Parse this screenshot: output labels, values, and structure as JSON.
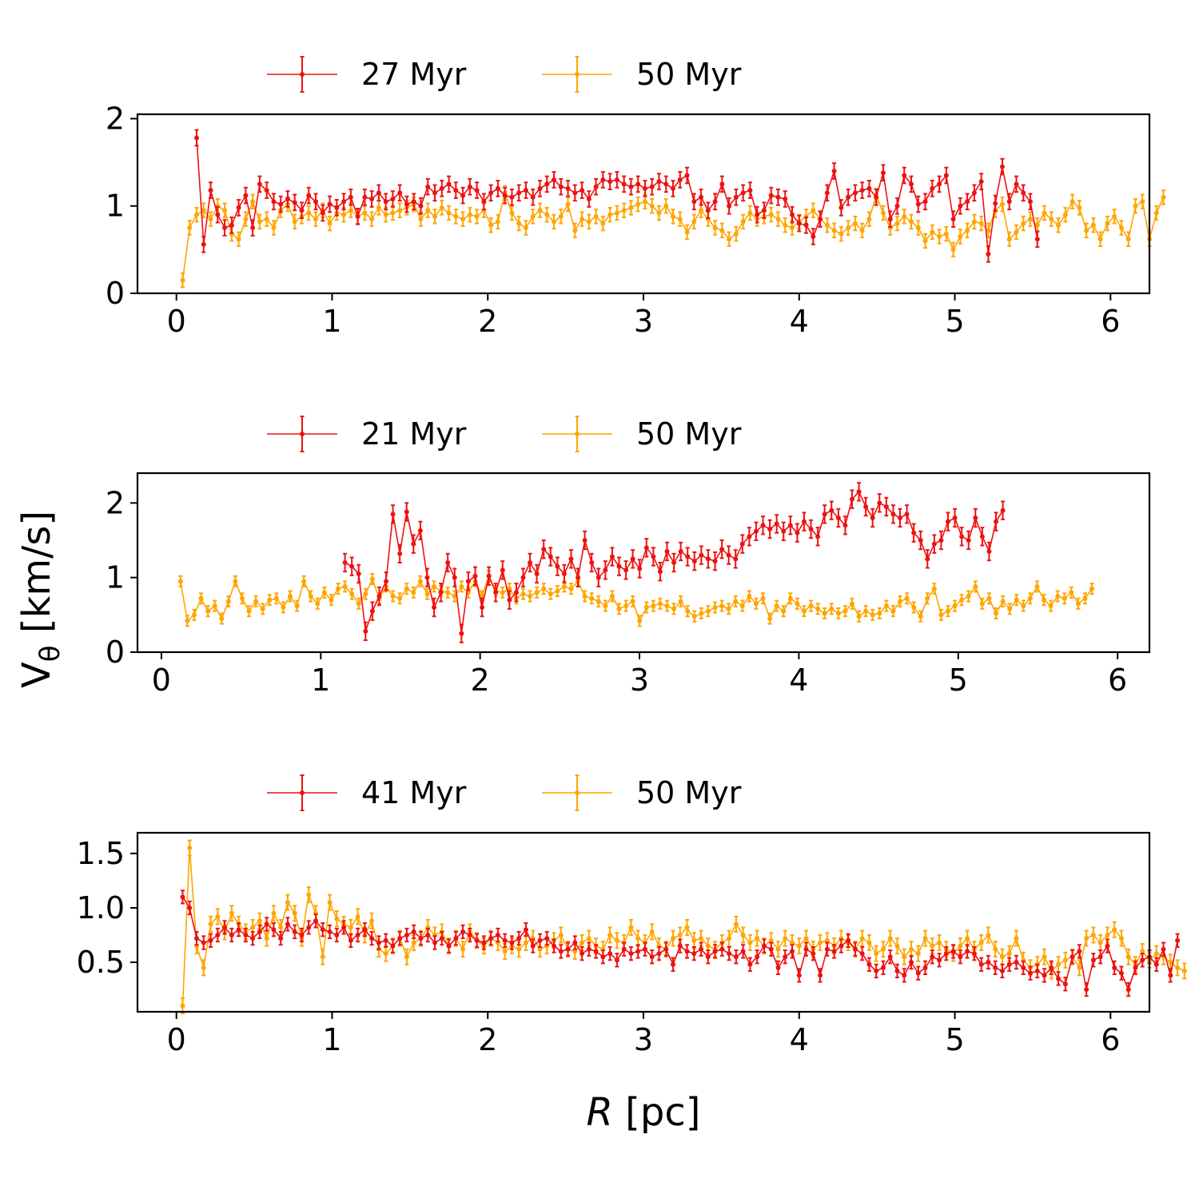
{
  "figure": {
    "ylabel_main": "V",
    "ylabel_sub": "θ",
    "ylabel_unit": " [km/s]",
    "xlabel_main": "R",
    "xlabel_unit": " [pc]"
  },
  "colors": {
    "series_a": "#ee1111",
    "series_b": "#ffa500"
  },
  "chart_data": [
    {
      "type": "line",
      "xlabel": "R [pc]",
      "ylabel": "Vθ [km/s]",
      "xlim": [
        -0.25,
        6.25
      ],
      "ylim": [
        0,
        2.05
      ],
      "xticks": [
        0,
        1,
        2,
        3,
        4,
        5,
        6
      ],
      "yticks": [
        0,
        1,
        2
      ],
      "legend": [
        "27 Myr",
        "50 Myr"
      ],
      "legend_position": "top-center",
      "x_start": 0.04,
      "x_step": 0.045,
      "series": [
        {
          "name": "27 Myr",
          "color": "#ee1111",
          "err": 0.09,
          "start_index": 2,
          "values": [
            1.78,
            0.56,
            1.18,
            0.9,
            0.75,
            0.78,
            0.98,
            1.12,
            0.75,
            1.25,
            1.18,
            1.05,
            1.02,
            1.08,
            1.04,
            0.95,
            1.12,
            1.05,
            0.92,
            1.02,
            0.98,
            1.05,
            1.1,
            0.88,
            1.1,
            1.08,
            1.15,
            1.05,
            1.08,
            1.15,
            1.02,
            1.05,
            1.0,
            1.22,
            1.15,
            1.2,
            1.25,
            1.18,
            1.12,
            1.22,
            1.18,
            1.05,
            1.15,
            1.2,
            1.12,
            1.1,
            1.15,
            1.18,
            1.1,
            1.2,
            1.25,
            1.3,
            1.22,
            1.2,
            1.15,
            1.18,
            1.08,
            1.22,
            1.3,
            1.28,
            1.3,
            1.25,
            1.22,
            1.25,
            1.2,
            1.22,
            1.28,
            1.25,
            1.2,
            1.3,
            1.35,
            1.05,
            1.1,
            0.95,
            1.05,
            1.25,
            1.0,
            1.1,
            1.15,
            1.18,
            0.9,
            0.95,
            1.12,
            1.1,
            1.08,
            0.9,
            0.8,
            0.78,
            0.65,
            0.85,
            1.15,
            1.4,
            0.98,
            1.1,
            1.15,
            1.18,
            1.2,
            1.1,
            1.38,
            0.85,
            1.0,
            1.35,
            1.25,
            1.02,
            1.05,
            1.2,
            1.25,
            1.35,
            0.85,
            1.0,
            1.05,
            1.15,
            1.28,
            0.45,
            1.03,
            1.45,
            1.05,
            1.25,
            1.15,
            1.05,
            0.62
          ]
        },
        {
          "name": "50 Myr",
          "color": "#ffa500",
          "err": 0.08,
          "start_index": 0,
          "values": [
            0.15,
            0.75,
            0.9,
            0.95,
            0.85,
            1.0,
            0.95,
            0.68,
            0.62,
            0.85,
            1.05,
            0.82,
            0.85,
            0.75,
            0.95,
            1.02,
            0.82,
            0.88,
            0.92,
            0.85,
            0.95,
            0.8,
            0.92,
            0.9,
            0.95,
            0.88,
            0.92,
            0.85,
            0.98,
            0.9,
            0.92,
            0.95,
            0.98,
            1.02,
            0.85,
            0.95,
            0.88,
            0.98,
            0.92,
            0.88,
            0.85,
            0.9,
            0.88,
            0.95,
            0.78,
            0.82,
            1.15,
            0.92,
            0.8,
            0.75,
            0.88,
            0.95,
            0.9,
            0.82,
            0.88,
            1.02,
            0.72,
            0.85,
            0.82,
            0.88,
            0.8,
            0.9,
            0.92,
            0.95,
            0.98,
            1.02,
            1.05,
            1.0,
            0.92,
            1.0,
            0.88,
            0.85,
            0.7,
            0.82,
            0.95,
            0.85,
            0.75,
            0.72,
            0.62,
            0.68,
            0.82,
            0.92,
            0.85,
            0.88,
            0.9,
            0.85,
            0.78,
            0.75,
            0.82,
            0.88,
            0.95,
            0.85,
            0.78,
            0.72,
            0.68,
            0.75,
            0.8,
            0.72,
            0.85,
            1.12,
            0.92,
            0.75,
            0.8,
            0.88,
            0.82,
            0.75,
            0.6,
            0.7,
            0.65,
            0.68,
            0.5,
            0.65,
            0.72,
            0.82,
            0.8,
            0.72,
            0.95,
            1.02,
            0.62,
            0.7,
            0.8,
            0.85,
            0.78,
            0.92,
            0.85,
            0.78,
            0.9,
            1.05,
            0.98,
            0.72,
            0.78,
            0.62,
            0.8,
            0.88,
            0.75,
            0.62,
            1.0,
            1.05,
            0.62,
            0.92,
            1.1
          ]
        }
      ]
    },
    {
      "type": "line",
      "xlabel": "R [pc]",
      "ylabel": "Vθ [km/s]",
      "xlim": [
        -0.15,
        6.2
      ],
      "ylim": [
        0,
        2.4
      ],
      "xticks": [
        0,
        1,
        2,
        3,
        4,
        5,
        6
      ],
      "yticks": [
        0,
        1,
        2
      ],
      "legend": [
        "21 Myr",
        "50 Myr"
      ],
      "legend_position": "top-center",
      "x_start": 0.12,
      "x_step": 0.043,
      "series": [
        {
          "name": "21 Myr",
          "color": "#ee1111",
          "err": 0.12,
          "start_index": 24,
          "values": [
            1.2,
            1.15,
            1.05,
            0.28,
            0.55,
            0.75,
            0.95,
            1.85,
            1.32,
            1.88,
            1.45,
            1.63,
            1.0,
            0.6,
            0.8,
            1.2,
            1.0,
            0.25,
            0.95,
            1.02,
            0.6,
            1.02,
            0.8,
            1.1,
            0.7,
            0.8,
            1.0,
            1.2,
            1.05,
            1.38,
            1.28,
            1.15,
            1.05,
            1.25,
            1.0,
            1.5,
            1.2,
            1.0,
            1.1,
            1.28,
            1.15,
            1.1,
            1.25,
            1.12,
            1.4,
            1.28,
            1.08,
            1.35,
            1.2,
            1.35,
            1.28,
            1.22,
            1.3,
            1.25,
            1.22,
            1.38,
            1.3,
            1.25,
            1.45,
            1.55,
            1.62,
            1.7,
            1.65,
            1.72,
            1.62,
            1.7,
            1.6,
            1.75,
            1.65,
            1.55,
            1.85,
            1.9,
            1.8,
            1.7,
            2.05,
            2.15,
            1.95,
            1.8,
            2.0,
            1.95,
            1.85,
            1.8,
            1.85,
            1.6,
            1.5,
            1.25,
            1.45,
            1.5,
            1.75,
            1.8,
            1.55,
            1.5,
            1.8,
            1.55,
            1.35,
            1.75,
            1.9
          ]
        },
        {
          "name": "50 Myr",
          "color": "#ffa500",
          "err": 0.07,
          "start_index": 0,
          "values": [
            0.95,
            0.42,
            0.5,
            0.72,
            0.55,
            0.62,
            0.45,
            0.68,
            0.95,
            0.72,
            0.55,
            0.68,
            0.58,
            0.7,
            0.72,
            0.6,
            0.75,
            0.62,
            0.95,
            0.75,
            0.65,
            0.8,
            0.7,
            0.85,
            0.88,
            0.78,
            0.65,
            0.78,
            0.98,
            0.72,
            0.88,
            0.75,
            0.72,
            0.85,
            0.8,
            0.95,
            0.78,
            0.88,
            0.82,
            0.8,
            0.75,
            0.88,
            0.8,
            0.95,
            0.75,
            1.02,
            0.82,
            0.8,
            0.85,
            0.72,
            0.78,
            0.75,
            0.8,
            0.85,
            0.78,
            0.82,
            0.88,
            0.85,
            0.95,
            0.75,
            0.72,
            0.68,
            0.62,
            0.75,
            0.58,
            0.62,
            0.68,
            0.42,
            0.6,
            0.62,
            0.65,
            0.62,
            0.58,
            0.68,
            0.55,
            0.48,
            0.52,
            0.55,
            0.6,
            0.62,
            0.58,
            0.68,
            0.62,
            0.75,
            0.65,
            0.72,
            0.45,
            0.62,
            0.55,
            0.72,
            0.65,
            0.55,
            0.62,
            0.58,
            0.52,
            0.58,
            0.52,
            0.55,
            0.65,
            0.48,
            0.55,
            0.5,
            0.52,
            0.62,
            0.55,
            0.68,
            0.72,
            0.6,
            0.48,
            0.72,
            0.85,
            0.5,
            0.55,
            0.62,
            0.7,
            0.75,
            0.88,
            0.65,
            0.72,
            0.52,
            0.68,
            0.58,
            0.7,
            0.62,
            0.72,
            0.88,
            0.7,
            0.62,
            0.75,
            0.72,
            0.8,
            0.65,
            0.72,
            0.85
          ]
        }
      ]
    },
    {
      "type": "line",
      "xlabel": "R [pc]",
      "ylabel": "Vθ [km/s]",
      "xlim": [
        -0.25,
        6.25
      ],
      "ylim": [
        0.045,
        1.69
      ],
      "xticks": [
        0,
        1,
        2,
        3,
        4,
        5,
        6
      ],
      "yticks": [
        0.5,
        1.0,
        1.5
      ],
      "ytick_labels": [
        "0.5",
        "1.0",
        "1.5"
      ],
      "legend": [
        "41 Myr",
        "50 Myr"
      ],
      "legend_position": "top-center",
      "x_start": 0.04,
      "x_step": 0.045,
      "series": [
        {
          "name": "41 Myr",
          "color": "#ee1111",
          "err": 0.06,
          "start_index": 0,
          "values": [
            1.1,
            1.0,
            0.72,
            0.68,
            0.7,
            0.75,
            0.82,
            0.75,
            0.8,
            0.75,
            0.72,
            0.78,
            0.85,
            0.8,
            0.72,
            0.85,
            0.78,
            0.75,
            0.82,
            0.88,
            0.8,
            0.78,
            0.75,
            0.82,
            0.7,
            0.75,
            0.8,
            0.72,
            0.68,
            0.7,
            0.65,
            0.72,
            0.75,
            0.78,
            0.72,
            0.75,
            0.68,
            0.72,
            0.65,
            0.72,
            0.78,
            0.75,
            0.7,
            0.68,
            0.72,
            0.75,
            0.7,
            0.68,
            0.72,
            0.8,
            0.65,
            0.7,
            0.72,
            0.65,
            0.6,
            0.62,
            0.68,
            0.58,
            0.62,
            0.6,
            0.55,
            0.58,
            0.52,
            0.62,
            0.58,
            0.6,
            0.62,
            0.55,
            0.58,
            0.62,
            0.48,
            0.65,
            0.6,
            0.58,
            0.62,
            0.55,
            0.6,
            0.62,
            0.58,
            0.55,
            0.6,
            0.48,
            0.55,
            0.65,
            0.62,
            0.45,
            0.55,
            0.6,
            0.38,
            0.62,
            0.58,
            0.38,
            0.62,
            0.6,
            0.65,
            0.7,
            0.62,
            0.58,
            0.48,
            0.42,
            0.45,
            0.55,
            0.42,
            0.38,
            0.5,
            0.4,
            0.45,
            0.55,
            0.52,
            0.58,
            0.6,
            0.55,
            0.6,
            0.58,
            0.48,
            0.5,
            0.45,
            0.42,
            0.48,
            0.5,
            0.45,
            0.4,
            0.42,
            0.38,
            0.45,
            0.35,
            0.3,
            0.55,
            0.6,
            0.25,
            0.52,
            0.55,
            0.65,
            0.45,
            0.4,
            0.25,
            0.45,
            0.52,
            0.55,
            0.48,
            0.62,
            0.38,
            0.7
          ]
        },
        {
          "name": "50 Myr",
          "color": "#ffa500",
          "err": 0.07,
          "start_index": 0,
          "values": [
            0.1,
            1.55,
            0.65,
            0.45,
            0.85,
            0.92,
            0.78,
            0.95,
            0.85,
            0.78,
            0.82,
            0.88,
            0.72,
            0.95,
            0.82,
            1.05,
            0.95,
            0.72,
            1.12,
            0.95,
            0.55,
            1.05,
            0.9,
            0.85,
            0.82,
            0.92,
            0.75,
            0.88,
            0.62,
            0.58,
            0.65,
            0.72,
            0.55,
            0.68,
            0.72,
            0.82,
            0.75,
            0.78,
            0.65,
            0.72,
            0.62,
            0.78,
            0.7,
            0.65,
            0.72,
            0.68,
            0.6,
            0.65,
            0.62,
            0.68,
            0.72,
            0.62,
            0.65,
            0.7,
            0.75,
            0.62,
            0.6,
            0.68,
            0.72,
            0.65,
            0.62,
            0.75,
            0.7,
            0.68,
            0.82,
            0.72,
            0.68,
            0.78,
            0.65,
            0.62,
            0.72,
            0.75,
            0.82,
            0.7,
            0.72,
            0.65,
            0.62,
            0.68,
            0.72,
            0.85,
            0.75,
            0.68,
            0.72,
            0.65,
            0.7,
            0.62,
            0.72,
            0.68,
            0.65,
            0.72,
            0.62,
            0.68,
            0.7,
            0.65,
            0.72,
            0.68,
            0.62,
            0.72,
            0.68,
            0.58,
            0.62,
            0.72,
            0.65,
            0.55,
            0.62,
            0.58,
            0.72,
            0.65,
            0.68,
            0.62,
            0.58,
            0.65,
            0.72,
            0.62,
            0.68,
            0.75,
            0.62,
            0.55,
            0.58,
            0.72,
            0.52,
            0.45,
            0.48,
            0.55,
            0.42,
            0.48,
            0.52,
            0.55,
            0.45,
            0.72,
            0.75,
            0.68,
            0.75,
            0.8,
            0.72,
            0.55,
            0.48,
            0.6,
            0.52,
            0.58,
            0.55,
            0.5,
            0.45,
            0.42
          ]
        }
      ]
    }
  ]
}
